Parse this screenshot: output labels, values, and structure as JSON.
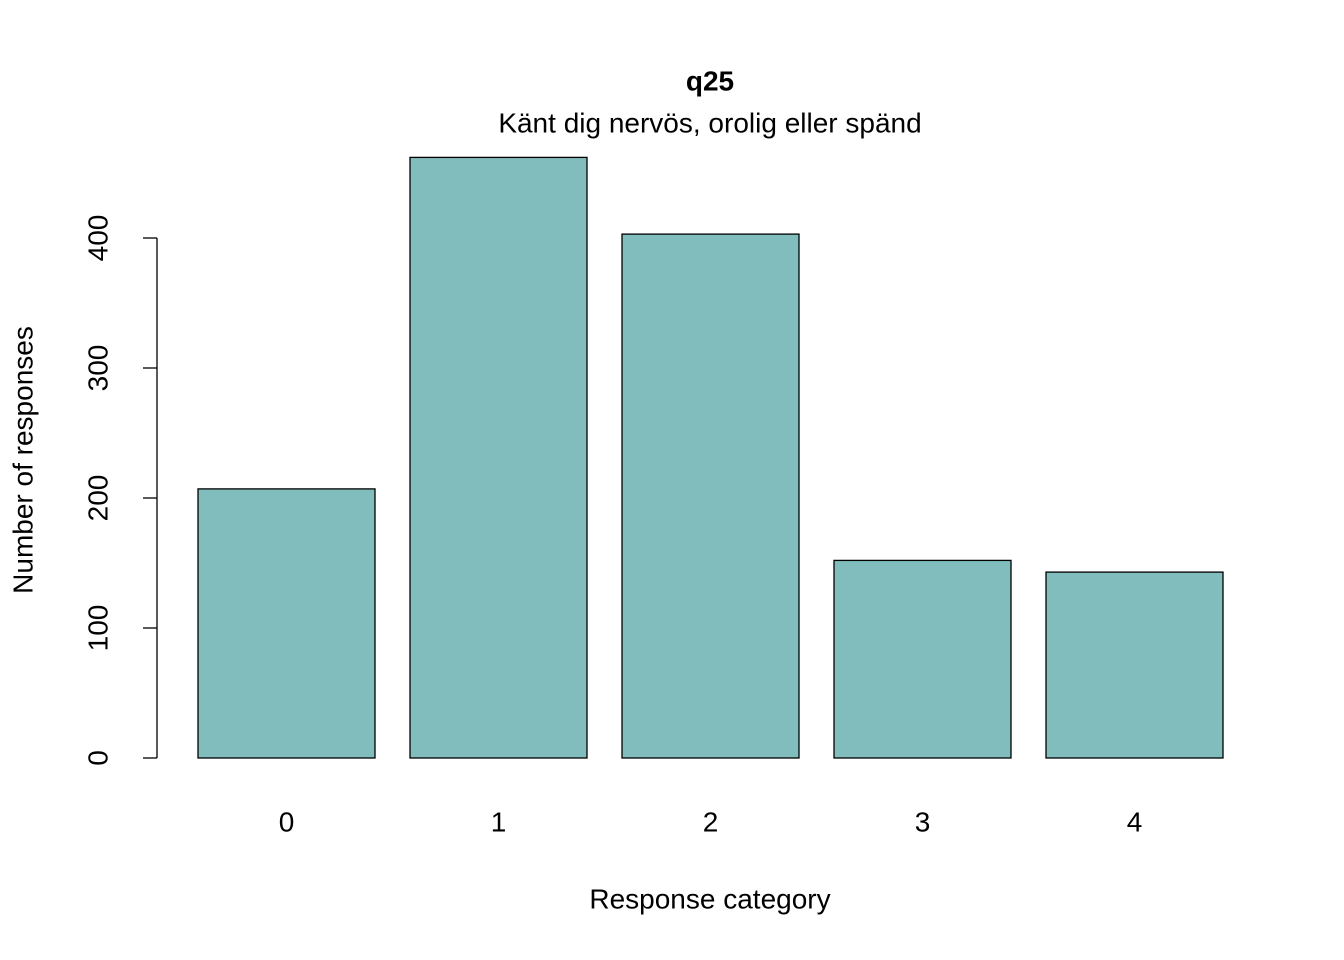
{
  "chart_data": {
    "type": "bar",
    "title": "q25",
    "subtitle": "Känt dig nervös, orolig eller spänd",
    "x_label": "Response category",
    "y_label": "Number of responses",
    "categories": [
      "0",
      "1",
      "2",
      "3",
      "4"
    ],
    "values": [
      207,
      462,
      403,
      152,
      143
    ],
    "color": "#80bdbc",
    "ylim": [
      0,
      462
    ],
    "yticks": [
      0,
      100,
      200,
      300,
      400
    ],
    "grid": false
  }
}
